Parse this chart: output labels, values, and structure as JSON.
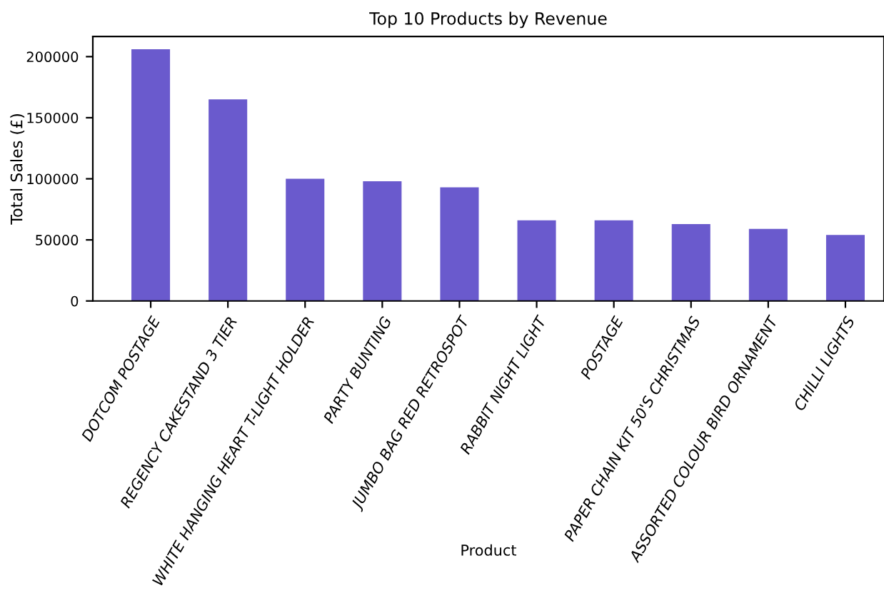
{
  "chart_data": {
    "type": "bar",
    "title": "Top 10 Products by Revenue",
    "xlabel": "Product",
    "ylabel": "Total Sales (£)",
    "categories": [
      "DOTCOM POSTAGE",
      "REGENCY CAKESTAND 3 TIER",
      "WHITE HANGING HEART T-LIGHT HOLDER",
      "PARTY BUNTING",
      "JUMBO BAG RED RETROSPOT",
      "RABBIT NIGHT LIGHT",
      "POSTAGE",
      "PAPER CHAIN KIT 50'S CHRISTMAS",
      "ASSORTED COLOUR BIRD ORNAMENT",
      "CHILLI LIGHTS"
    ],
    "values": [
      206000,
      165000,
      100000,
      98000,
      93000,
      66000,
      66000,
      63000,
      59000,
      54000
    ],
    "color": "#6a5acd",
    "ylim": [
      0,
      216500
    ],
    "yticks": [
      0,
      50000,
      100000,
      150000,
      200000
    ],
    "grid": false,
    "legend": false
  }
}
